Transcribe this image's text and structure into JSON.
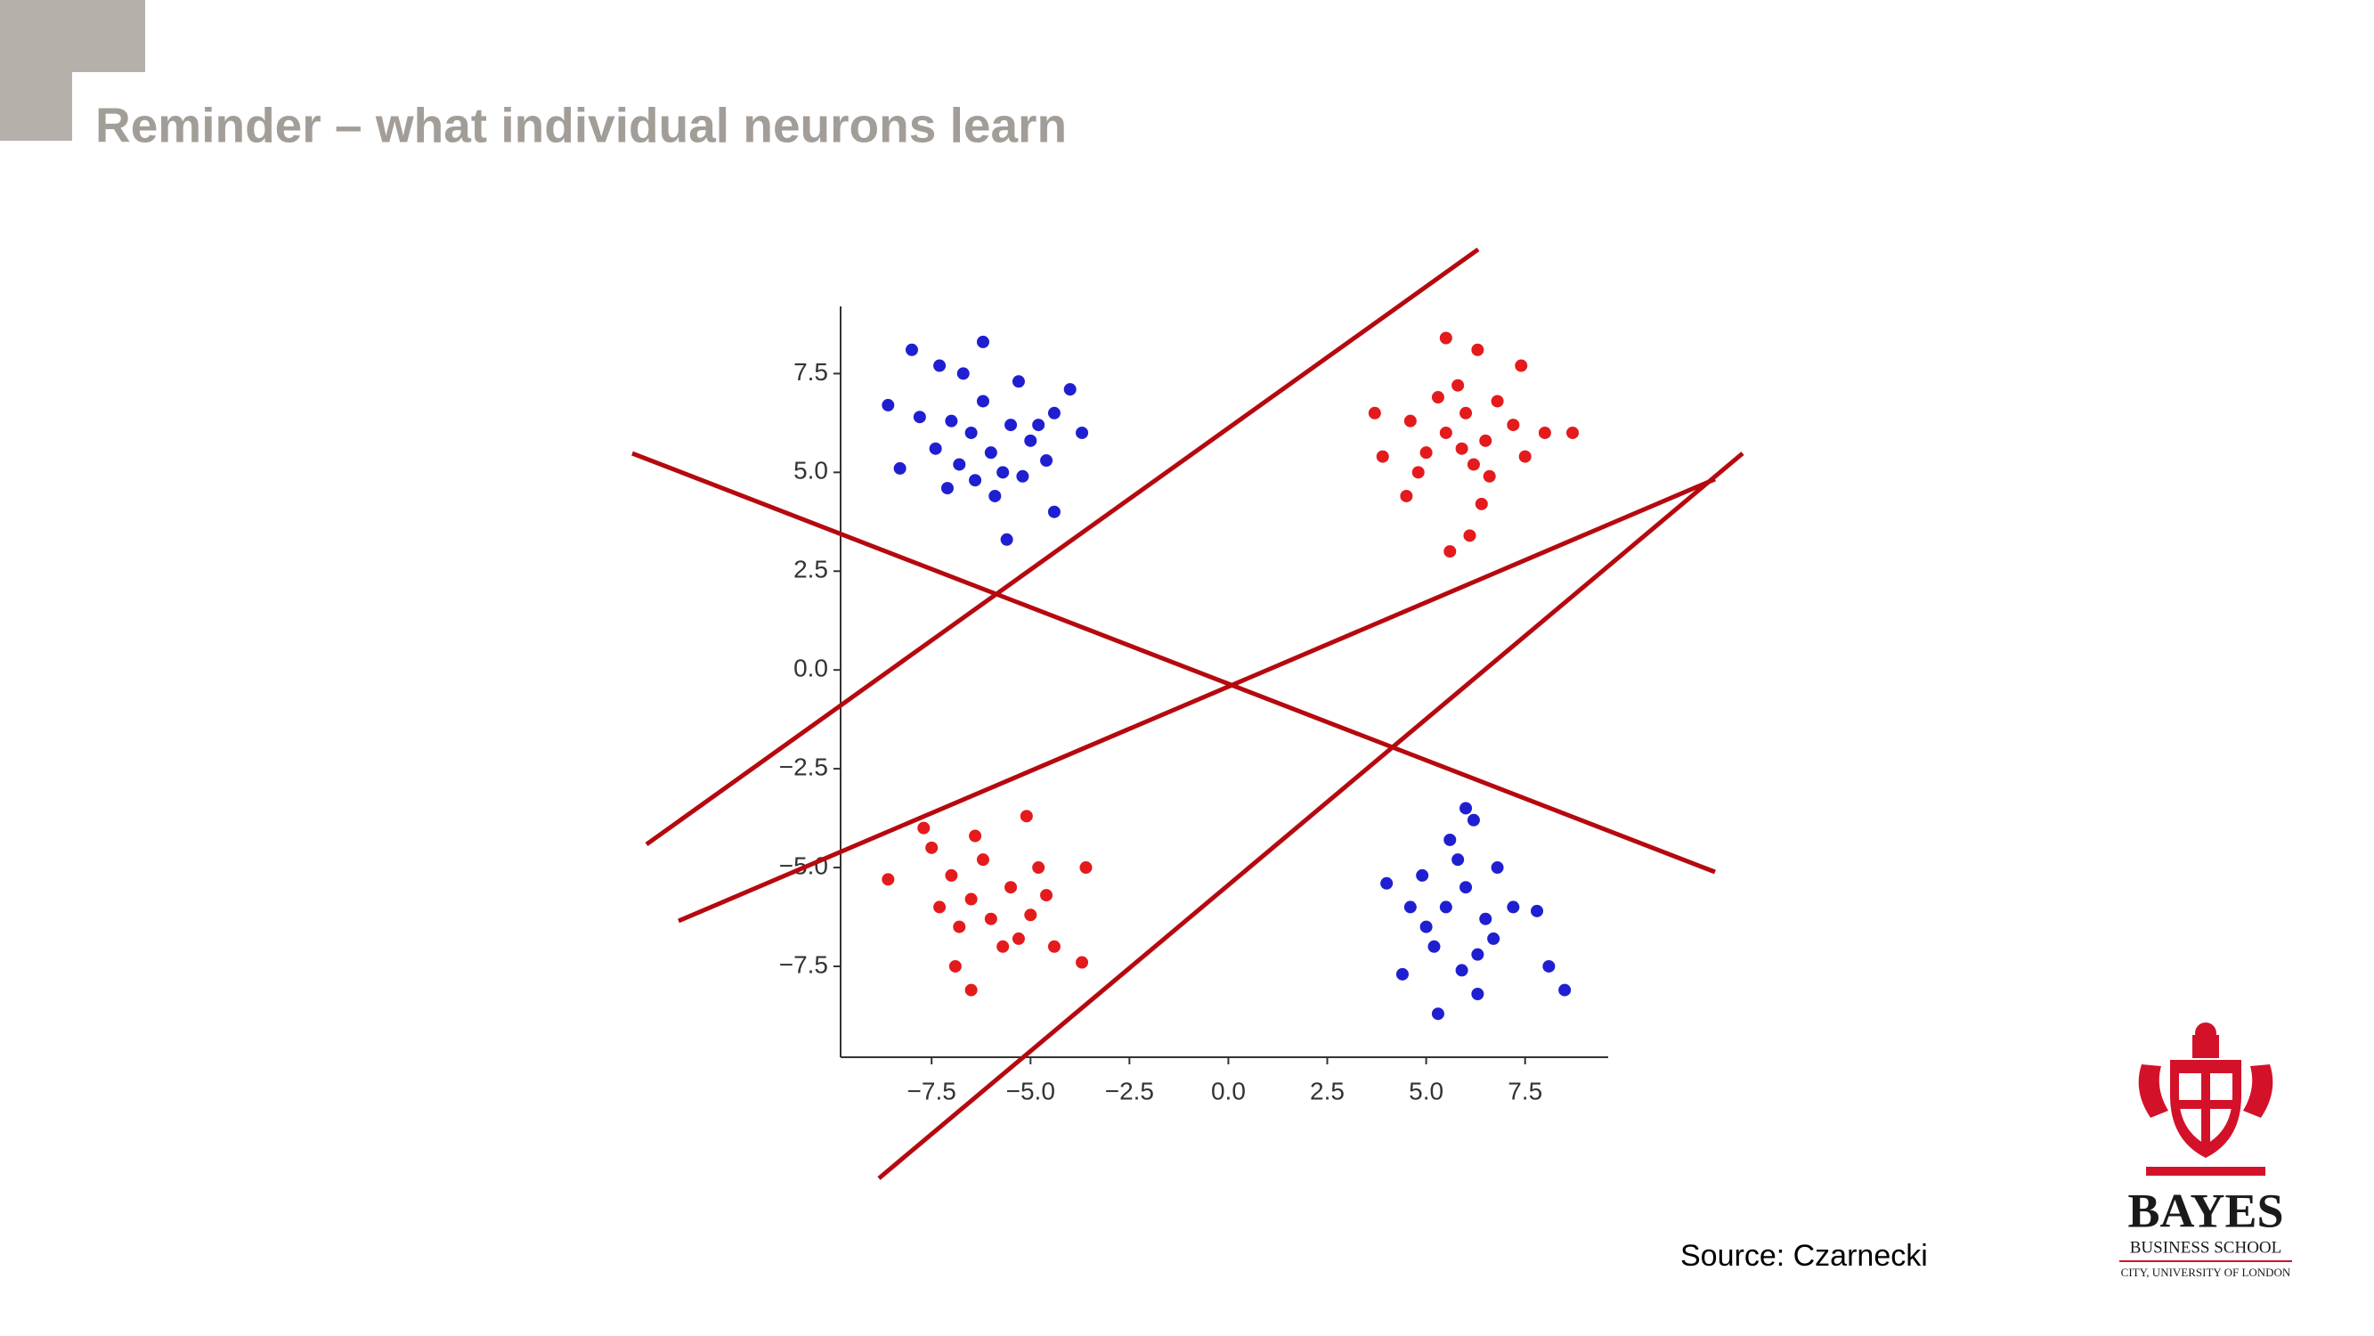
{
  "header": {
    "title": "Reminder – what individual neurons learn"
  },
  "source": "Source: Czarnecki",
  "logo": {
    "name": "BAYES",
    "school": "BUSINESS SCHOOL",
    "university": "CITY, UNIVERSITY OF LONDON"
  },
  "chart_data": {
    "type": "scatter",
    "xlim": [
      -9.8,
      9.6
    ],
    "ylim": [
      -9.8,
      9.2
    ],
    "xticks": [
      {
        "value": -7.5,
        "label": "−7.5"
      },
      {
        "value": -5,
        "label": "−5.0"
      },
      {
        "value": -2.5,
        "label": "−2.5"
      },
      {
        "value": 0,
        "label": "0.0"
      },
      {
        "value": 2.5,
        "label": "2.5"
      },
      {
        "value": 5,
        "label": "5.0"
      },
      {
        "value": 7.5,
        "label": "7.5"
      }
    ],
    "yticks": [
      {
        "value": -7.5,
        "label": "−7.5"
      },
      {
        "value": -5,
        "label": "−5.0"
      },
      {
        "value": -2.5,
        "label": "−2.5"
      },
      {
        "value": 0,
        "label": "0.0"
      },
      {
        "value": 2.5,
        "label": "2.5"
      },
      {
        "value": 5,
        "label": "5.0"
      },
      {
        "value": 7.5,
        "label": "7.5"
      }
    ],
    "series": [
      {
        "color": "#e41a1c",
        "x": [
          5.5,
          6.3,
          5.6,
          6.1,
          8.7,
          8.0,
          3.7,
          3.9,
          7.4,
          6.4,
          4.5,
          5.5,
          6.0,
          6.5,
          5.0,
          6.8,
          5.8,
          7.2,
          4.6,
          6.2,
          5.3,
          7.5,
          4.8,
          6.6,
          5.9,
          -8.6,
          -6.5,
          -6.9,
          -3.7,
          -5.1,
          -3.6,
          -7.7,
          -4.4,
          -6.5,
          -6.0,
          -5.5,
          -7.0,
          -6.2,
          -5.0,
          -6.8,
          -5.7,
          -7.3,
          -4.8,
          -6.4,
          -5.3,
          -7.5,
          -4.6
        ],
        "y": [
          8.4,
          8.1,
          3.0,
          3.4,
          6.0,
          6.0,
          6.5,
          5.4,
          7.7,
          4.2,
          4.4,
          6.0,
          6.5,
          5.8,
          5.5,
          6.8,
          7.2,
          6.2,
          6.3,
          5.2,
          6.9,
          5.4,
          5.0,
          4.9,
          5.6,
          -5.3,
          -8.1,
          -7.5,
          -7.4,
          -3.7,
          -5.0,
          -4.0,
          -7.0,
          -5.8,
          -6.3,
          -5.5,
          -5.2,
          -4.8,
          -6.2,
          -6.5,
          -7.0,
          -6.0,
          -5.0,
          -4.2,
          -6.8,
          -4.5,
          -5.7
        ]
      },
      {
        "color": "#1f1fd1",
        "x": [
          -8.0,
          -6.2,
          -8.6,
          -7.8,
          -7.3,
          -6.7,
          -5.6,
          -4.4,
          -3.7,
          -8.3,
          -7.1,
          -5.9,
          -5.3,
          -4.4,
          -4.0,
          -6.5,
          -6.0,
          -5.5,
          -6.8,
          -5.0,
          -6.2,
          -7.0,
          -5.7,
          -4.8,
          -6.4,
          -7.4,
          -5.2,
          -4.6,
          5.3,
          6.3,
          8.5,
          8.1,
          6.0,
          6.2,
          4.0,
          4.4,
          7.8,
          5.5,
          6.0,
          6.5,
          5.0,
          5.8,
          6.8,
          5.2,
          6.3,
          4.6,
          7.2,
          5.6,
          6.7,
          4.9,
          5.9
        ],
        "y": [
          8.1,
          8.3,
          6.7,
          6.4,
          7.7,
          7.5,
          3.3,
          4.0,
          6.0,
          5.1,
          4.6,
          4.4,
          7.3,
          6.5,
          7.1,
          6.0,
          5.5,
          6.2,
          5.2,
          5.8,
          6.8,
          6.3,
          5.0,
          6.2,
          4.8,
          5.6,
          4.9,
          5.3,
          -8.7,
          -8.2,
          -8.1,
          -7.5,
          -3.5,
          -3.8,
          -5.4,
          -7.7,
          -6.1,
          -6.0,
          -5.5,
          -6.3,
          -6.5,
          -4.8,
          -5.0,
          -7.0,
          -7.2,
          -6.0,
          -6.0,
          -4.3,
          -6.8,
          -5.2,
          -7.6
        ]
      }
    ]
  }
}
